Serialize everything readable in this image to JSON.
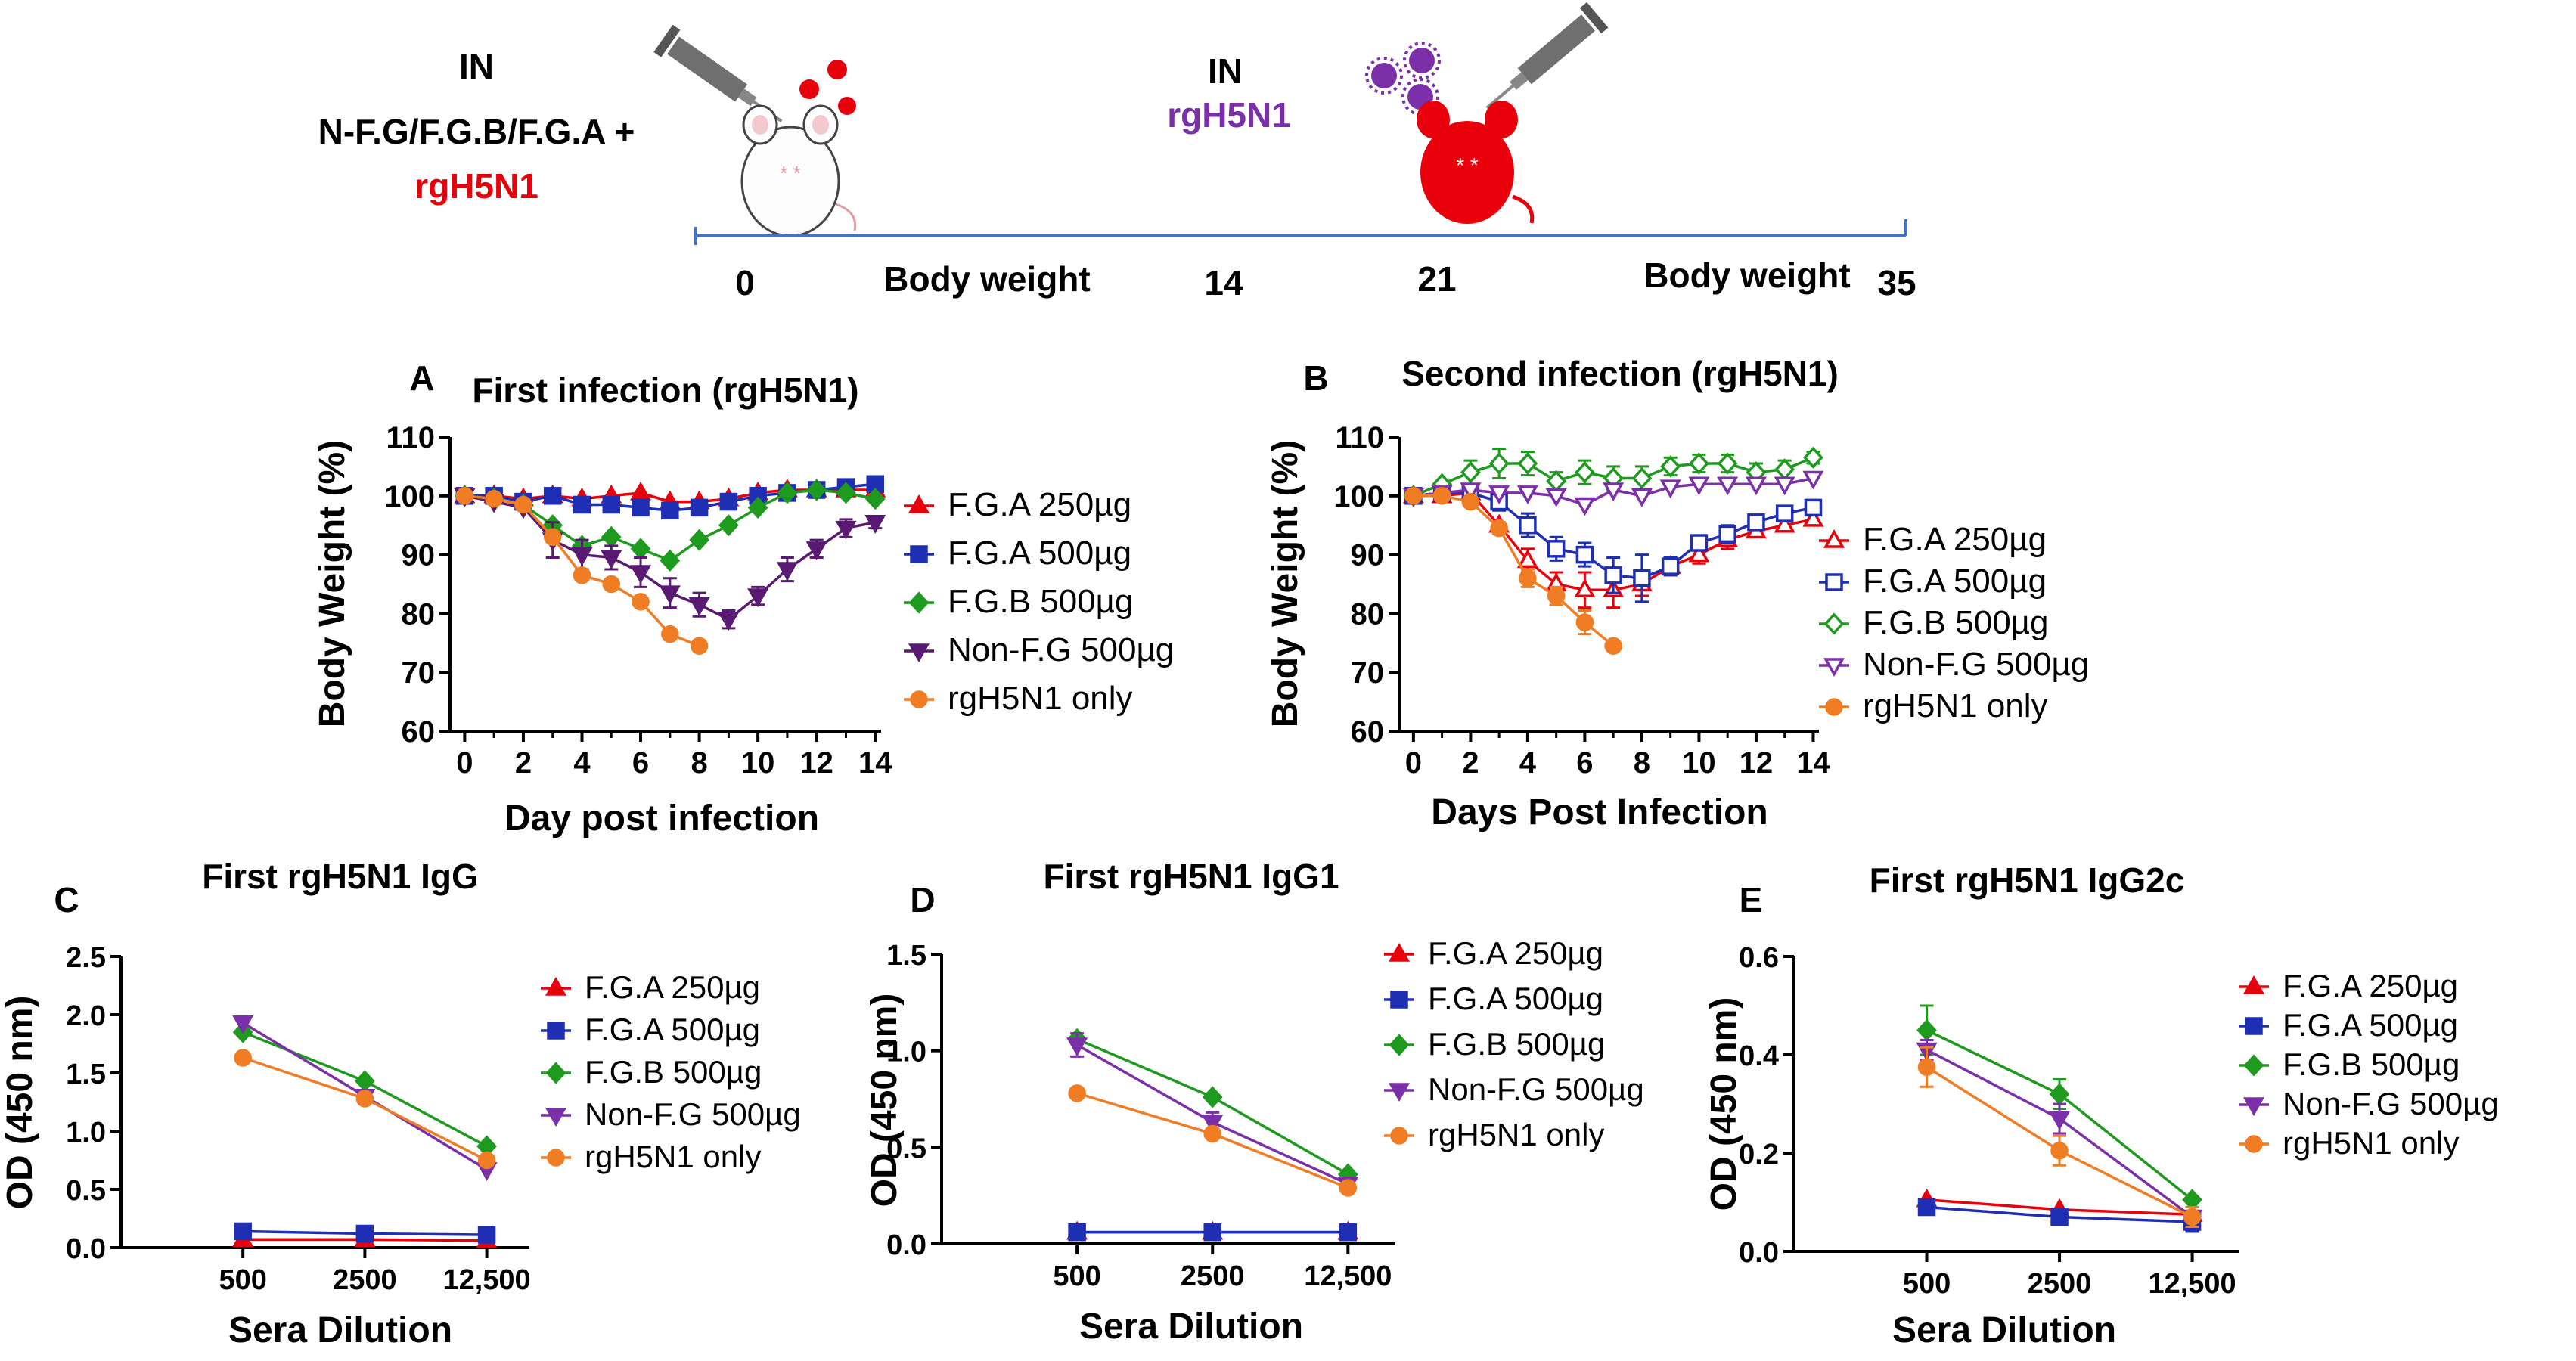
{
  "schematic": {
    "in_label_1": "IN",
    "treatment": "N-F.G/F.G.B/F.G.A +",
    "virus_1": "rgH5N1",
    "in_label_2": "IN",
    "virus_2": "rgH5N1",
    "timeline_ticks": [
      "0",
      "14",
      "21",
      "35"
    ],
    "body_weight_1": "Body weight",
    "body_weight_2": "Body weight",
    "colors": {
      "red": "#e8000b",
      "purple": "#7b2fa8",
      "line": "#4472c4"
    }
  },
  "chart_data": [
    {
      "panel": "A",
      "type": "line",
      "title": "First infection (rgH5N1)",
      "xlabel": "Day post infection",
      "ylabel": "Body Weight (%)",
      "xlim": [
        -0.5,
        14.2
      ],
      "ylim": [
        60,
        110
      ],
      "xticks": [
        0,
        2,
        4,
        6,
        8,
        10,
        12,
        14
      ],
      "yticks": [
        60,
        70,
        80,
        90,
        100,
        110
      ],
      "series": [
        {
          "name": "F.G.A 250µg",
          "color": "#e8000b",
          "marker": "triangle-up",
          "filled": true,
          "x": [
            0,
            1,
            2,
            3,
            4,
            5,
            6,
            7,
            8,
            9,
            10,
            11,
            12,
            13,
            14
          ],
          "y": [
            100,
            100,
            99.5,
            100,
            99.5,
            100,
            100.5,
            99,
            99,
            99.5,
            100.5,
            101,
            101,
            101,
            101
          ],
          "err": [
            0,
            0,
            0,
            0,
            0,
            0,
            0,
            0,
            0,
            0,
            0,
            0,
            0,
            0,
            0
          ]
        },
        {
          "name": "F.G.A 500µg",
          "color": "#1f2fb4",
          "marker": "square",
          "filled": true,
          "x": [
            0,
            1,
            2,
            3,
            4,
            5,
            6,
            7,
            8,
            9,
            10,
            11,
            12,
            13,
            14
          ],
          "y": [
            100,
            100,
            99,
            100,
            98.5,
            98.5,
            98,
            97.5,
            98,
            99,
            100,
            100.5,
            101,
            101.5,
            102
          ],
          "err": [
            0,
            0,
            0,
            0,
            0,
            0,
            0,
            0,
            0,
            0,
            0,
            0,
            0,
            0,
            0
          ]
        },
        {
          "name": "F.G.B 500µg",
          "color": "#1e9a1e",
          "marker": "diamond",
          "filled": true,
          "x": [
            0,
            1,
            2,
            3,
            4,
            5,
            6,
            7,
            8,
            9,
            10,
            11,
            12,
            13,
            14
          ],
          "y": [
            100,
            99.5,
            98.5,
            95,
            91.5,
            93,
            91,
            89,
            92.5,
            95,
            98,
            100.5,
            101,
            100.5,
            99.5
          ],
          "err": [
            0,
            0,
            0,
            0,
            0,
            0,
            0,
            0,
            0,
            0,
            0,
            0,
            0,
            0,
            0
          ]
        },
        {
          "name": "Non-F.G 500µg",
          "color": "#5a1a73",
          "marker": "triangle-down",
          "filled": true,
          "x": [
            0,
            1,
            2,
            3,
            4,
            5,
            6,
            7,
            8,
            9,
            10,
            11,
            12,
            13,
            14
          ],
          "y": [
            100,
            99,
            98,
            92.5,
            90,
            89.5,
            87,
            83.5,
            81.5,
            79,
            83,
            87.5,
            91,
            94.5,
            95.5
          ],
          "err": [
            0,
            0,
            0,
            3,
            2.5,
            2,
            2.5,
            2.5,
            2,
            1.5,
            1.5,
            2,
            1.5,
            1.5,
            1
          ]
        },
        {
          "name": "rgH5N1 only",
          "color": "#f07c24",
          "marker": "circle",
          "filled": true,
          "x": [
            0,
            1,
            2,
            3,
            4,
            5,
            6,
            7,
            8
          ],
          "y": [
            100,
            99.5,
            98.5,
            93,
            86.5,
            85,
            82,
            76.5,
            74.5
          ],
          "err": [
            0,
            0,
            0,
            0,
            0,
            0,
            0,
            0,
            0
          ]
        }
      ]
    },
    {
      "panel": "B",
      "type": "line",
      "title": "Second infection (rgH5N1)",
      "xlabel": "Days Post Infection",
      "ylabel": "Body Weight (%)",
      "xlim": [
        -0.5,
        14.2
      ],
      "ylim": [
        60,
        110
      ],
      "xticks": [
        0,
        2,
        4,
        6,
        8,
        10,
        12,
        14
      ],
      "yticks": [
        60,
        70,
        80,
        90,
        100,
        110
      ],
      "series": [
        {
          "name": "F.G.A 250µg",
          "color": "#e8000b",
          "marker": "triangle-up",
          "filled": false,
          "x": [
            0,
            1,
            2,
            3,
            4,
            5,
            6,
            7,
            8,
            9,
            10,
            11,
            12,
            13,
            14
          ],
          "y": [
            100,
            100,
            100.5,
            95,
            89,
            85,
            84,
            84,
            85,
            88,
            90,
            92.5,
            94,
            95,
            96
          ],
          "err": [
            0,
            0,
            0,
            0,
            2,
            2,
            3,
            3,
            2,
            1.5,
            1.5,
            1.5,
            1,
            1,
            1
          ]
        },
        {
          "name": "F.G.A 500µg",
          "color": "#1f2fb4",
          "marker": "square",
          "filled": false,
          "x": [
            0,
            1,
            2,
            3,
            4,
            5,
            6,
            7,
            8,
            9,
            10,
            11,
            12,
            13,
            14
          ],
          "y": [
            100,
            100.5,
            100.5,
            99,
            95,
            91,
            90,
            86.5,
            86,
            88,
            92,
            93.5,
            95.5,
            97,
            98
          ],
          "err": [
            0,
            0,
            1,
            1.5,
            2,
            2,
            2,
            3,
            4,
            1.5,
            1,
            1.5,
            1,
            1,
            1
          ]
        },
        {
          "name": "F.G.B 500µg",
          "color": "#1e9a1e",
          "marker": "diamond",
          "filled": false,
          "x": [
            0,
            1,
            2,
            3,
            4,
            5,
            6,
            7,
            8,
            9,
            10,
            11,
            12,
            13,
            14
          ],
          "y": [
            100,
            102,
            104,
            105.5,
            105.5,
            102.5,
            104,
            103,
            103,
            105,
            105.5,
            105.5,
            104,
            104.5,
            106.5
          ],
          "err": [
            0,
            0,
            2,
            2.5,
            2,
            1.5,
            2,
            2,
            2,
            1.5,
            1.5,
            1.5,
            1.5,
            1.5,
            1
          ]
        },
        {
          "name": "Non-F.G  500µg",
          "color": "#7b2fa8",
          "marker": "triangle-down",
          "filled": false,
          "x": [
            0,
            1,
            2,
            3,
            4,
            5,
            6,
            7,
            8,
            9,
            10,
            11,
            12,
            13,
            14
          ],
          "y": [
            100,
            100.5,
            101,
            100.5,
            100.5,
            100,
            98.5,
            101,
            100,
            101.5,
            102,
            102,
            102,
            102,
            103
          ],
          "err": [
            0,
            0,
            0,
            0,
            0,
            0,
            0,
            0,
            0,
            0,
            0,
            0,
            0,
            0,
            0
          ]
        },
        {
          "name": "rgH5N1 only",
          "color": "#f07c24",
          "marker": "circle",
          "filled": true,
          "x": [
            0,
            1,
            2,
            3,
            4,
            5,
            6,
            7
          ],
          "y": [
            100,
            100,
            99,
            94.5,
            86,
            83,
            78.5,
            74.5
          ],
          "err": [
            0,
            0,
            0,
            1,
            1.5,
            1.5,
            2,
            0
          ]
        }
      ]
    },
    {
      "panel": "C",
      "type": "line",
      "title": "First rgH5N1 IgG",
      "xlabel": "Sera Dilution",
      "ylabel": "OD (450 nm)",
      "categories": [
        "500",
        "2500",
        "12,500"
      ],
      "ylim": [
        0,
        2.5
      ],
      "yticks": [
        "0.0",
        "0.5",
        "1.0",
        "1.5",
        "2.0",
        "2.5"
      ],
      "series": [
        {
          "name": "F.G.A 250µg",
          "color": "#e8000b",
          "marker": "triangle-up",
          "values": [
            0.07,
            0.07,
            0.06
          ],
          "err": [
            0,
            0,
            0
          ]
        },
        {
          "name": "F.G.A 500µg",
          "color": "#1f2fb4",
          "marker": "square",
          "values": [
            0.14,
            0.12,
            0.11
          ],
          "err": [
            0,
            0,
            0
          ]
        },
        {
          "name": "F.G.B 500µg",
          "color": "#1e9a1e",
          "marker": "diamond",
          "values": [
            1.85,
            1.43,
            0.87
          ],
          "err": [
            0,
            0,
            0
          ]
        },
        {
          "name": "Non-F.G 500µg",
          "color": "#7b2fa8",
          "marker": "triangle-down",
          "values": [
            1.93,
            1.3,
            0.67
          ],
          "err": [
            0,
            0,
            0
          ]
        },
        {
          "name": "rgH5N1 only",
          "color": "#f07c24",
          "marker": "circle",
          "values": [
            1.63,
            1.28,
            0.75
          ],
          "err": [
            0,
            0,
            0
          ]
        }
      ]
    },
    {
      "panel": "D",
      "type": "line",
      "title": "First rgH5N1 IgG1",
      "xlabel": "Sera Dilution",
      "ylabel": "OD (450 nm)",
      "categories": [
        "500",
        "2500",
        "12,500"
      ],
      "ylim": [
        0,
        1.5
      ],
      "yticks": [
        "0.0",
        "0.5",
        "1.0",
        "1.5"
      ],
      "series": [
        {
          "name": "F.G.A 250µg",
          "color": "#e8000b",
          "marker": "triangle-up",
          "values": [
            0.06,
            0.06,
            0.06
          ],
          "err": [
            0,
            0,
            0
          ]
        },
        {
          "name": "F.G.A 500µg",
          "color": "#1f2fb4",
          "marker": "square",
          "values": [
            0.06,
            0.06,
            0.06
          ],
          "err": [
            0,
            0,
            0
          ]
        },
        {
          "name": "F.G.B 500µg",
          "color": "#1e9a1e",
          "marker": "diamond",
          "values": [
            1.06,
            0.76,
            0.36
          ],
          "err": [
            0,
            0,
            0
          ]
        },
        {
          "name": "Non-F.G 500µg",
          "color": "#7b2fa8",
          "marker": "triangle-down",
          "values": [
            1.03,
            0.63,
            0.31
          ],
          "err": [
            0.06,
            0.05,
            0
          ]
        },
        {
          "name": "rgH5N1 only",
          "color": "#f07c24",
          "marker": "circle",
          "values": [
            0.78,
            0.57,
            0.29
          ],
          "err": [
            0,
            0,
            0
          ]
        }
      ]
    },
    {
      "panel": "E",
      "type": "line",
      "title": "First rgH5N1 IgG2c",
      "xlabel": "Sera Dilution",
      "ylabel": "OD (450 nm)",
      "categories": [
        "500",
        "2500",
        "12,500"
      ],
      "ylim": [
        0,
        0.6
      ],
      "yticks": [
        "0.0",
        "0.2",
        "0.4",
        "0.6"
      ],
      "series": [
        {
          "name": "F.G.A 250µg",
          "color": "#e8000b",
          "marker": "triangle-up",
          "values": [
            0.105,
            0.085,
            0.075
          ],
          "err": [
            0,
            0,
            0
          ]
        },
        {
          "name": "F.G.A 500µg",
          "color": "#1f2fb4",
          "marker": "square",
          "values": [
            0.09,
            0.07,
            0.06
          ],
          "err": [
            0,
            0,
            0.02
          ]
        },
        {
          "name": "F.G.B 500µg",
          "color": "#1e9a1e",
          "marker": "diamond",
          "values": [
            0.45,
            0.32,
            0.105
          ],
          "err": [
            0.05,
            0.03,
            0
          ]
        },
        {
          "name": "Non-F.G 500µg",
          "color": "#7b2fa8",
          "marker": "triangle-down",
          "values": [
            0.41,
            0.27,
            0.07
          ],
          "err": [
            0.02,
            0.03,
            0.02
          ]
        },
        {
          "name": "rgH5N1 only",
          "color": "#f07c24",
          "marker": "circle",
          "values": [
            0.375,
            0.205,
            0.07
          ],
          "err": [
            0.04,
            0.03,
            0.02
          ]
        }
      ]
    }
  ]
}
